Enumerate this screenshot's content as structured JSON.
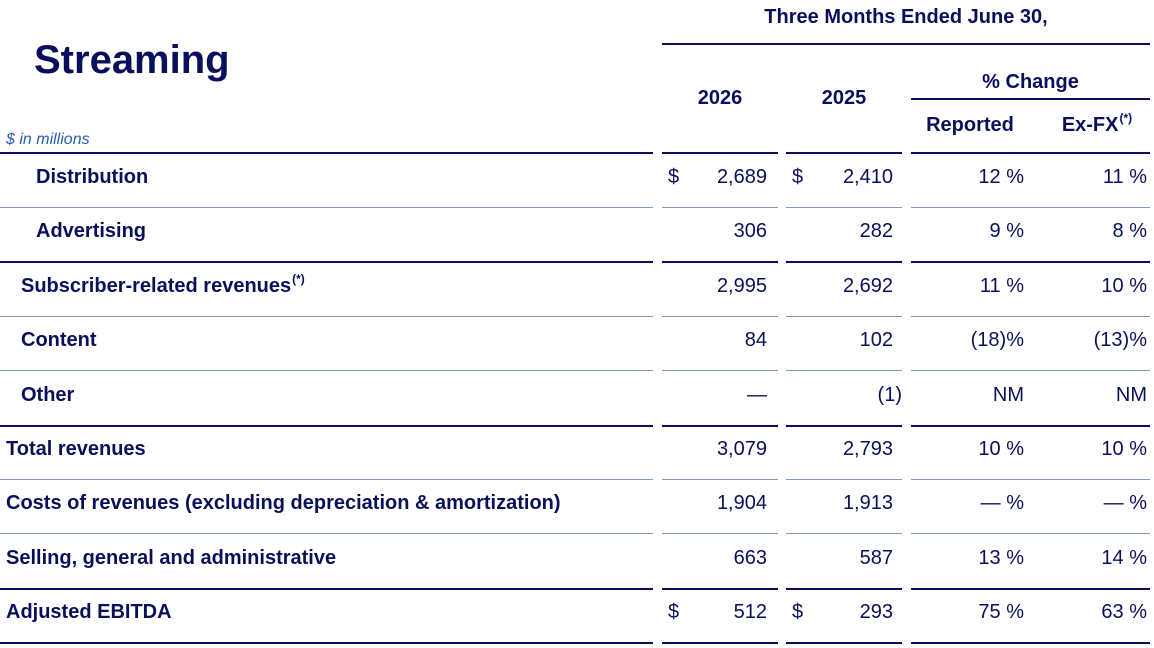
{
  "header": {
    "period": "Three Months Ended June 30,",
    "title": "Streaming",
    "units": "$ in millions",
    "year_current": "2026",
    "year_prior": "2025",
    "pct_change": "% Change",
    "reported": "Reported",
    "exfx": "Ex-FX",
    "footnote_mark": "(*)"
  },
  "rows": [
    {
      "label": "Distribution",
      "currency": "$",
      "current": "2,689",
      "prior": "2,410",
      "reported": "12 %",
      "exfx": "11 %"
    },
    {
      "label": "Advertising",
      "currency": "",
      "current": "306",
      "prior": "282",
      "reported": "9 %",
      "exfx": "8 %"
    },
    {
      "label": "Subscriber-related revenues",
      "footnote": "(*)",
      "currency": "",
      "current": "2,995",
      "prior": "2,692",
      "reported": "11 %",
      "exfx": "10 %"
    },
    {
      "label": "Content",
      "currency": "",
      "current": "84",
      "prior": "102",
      "reported": "(18)%",
      "exfx": "(13)%"
    },
    {
      "label": "Other",
      "currency": "",
      "current": "—",
      "prior": "(1)",
      "reported": "NM",
      "exfx": "NM"
    },
    {
      "label": "Total revenues",
      "currency": "",
      "current": "3,079",
      "prior": "2,793",
      "reported": "10 %",
      "exfx": "10 %"
    },
    {
      "label": "Costs of revenues (excluding depreciation & amortization)",
      "currency": "",
      "current": "1,904",
      "prior": "1,913",
      "reported": "— %",
      "exfx": "— %"
    },
    {
      "label": "Selling, general and administrative",
      "currency": "",
      "current": "663",
      "prior": "587",
      "reported": "13 %",
      "exfx": "14 %"
    },
    {
      "label": "Adjusted EBITDA",
      "currency": "$",
      "current": "512",
      "prior": "293",
      "reported": "75 %",
      "exfx": "63 %"
    }
  ]
}
